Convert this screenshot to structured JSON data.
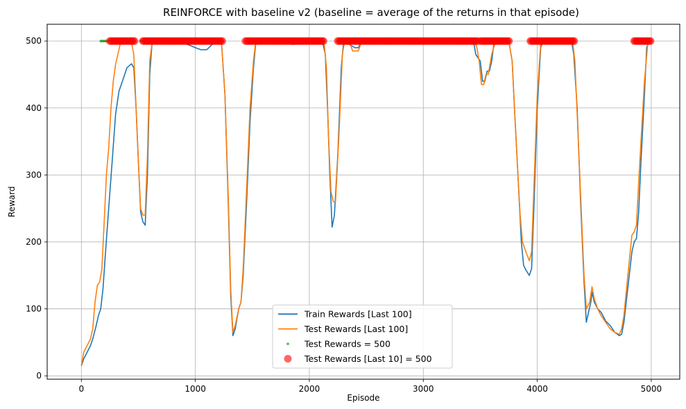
{
  "chart_data": {
    "type": "line",
    "title": "REINFORCE with baseline v2 (baseline = average of the returns in that episode)",
    "xlabel": "Episode",
    "ylabel": "Reward",
    "xlim": [
      -300,
      5250
    ],
    "ylim": [
      -5,
      525
    ],
    "xticks": [
      0,
      1000,
      2000,
      3000,
      4000,
      5000
    ],
    "yticks": [
      0,
      100,
      200,
      300,
      400,
      500
    ],
    "grid": true,
    "legend_position": "lower-center",
    "series": [
      {
        "name": "Train Rewards [Last 100]",
        "kind": "line",
        "color": "#1f77b4",
        "points": [
          [
            0,
            15
          ],
          [
            20,
            25
          ],
          [
            50,
            35
          ],
          [
            80,
            45
          ],
          [
            100,
            55
          ],
          [
            130,
            75
          ],
          [
            150,
            90
          ],
          [
            170,
            100
          ],
          [
            190,
            130
          ],
          [
            210,
            180
          ],
          [
            240,
            250
          ],
          [
            270,
            320
          ],
          [
            300,
            390
          ],
          [
            330,
            425
          ],
          [
            360,
            440
          ],
          [
            400,
            460
          ],
          [
            440,
            466
          ],
          [
            460,
            460
          ],
          [
            480,
            400
          ],
          [
            500,
            320
          ],
          [
            520,
            245
          ],
          [
            540,
            230
          ],
          [
            560,
            225
          ],
          [
            580,
            300
          ],
          [
            600,
            450
          ],
          [
            620,
            497
          ],
          [
            650,
            500
          ],
          [
            800,
            500
          ],
          [
            900,
            497
          ],
          [
            1000,
            490
          ],
          [
            1050,
            487
          ],
          [
            1100,
            487
          ],
          [
            1130,
            492
          ],
          [
            1160,
            497
          ],
          [
            1200,
            500
          ],
          [
            1230,
            497
          ],
          [
            1260,
            420
          ],
          [
            1290,
            250
          ],
          [
            1310,
            120
          ],
          [
            1330,
            60
          ],
          [
            1350,
            70
          ],
          [
            1380,
            100
          ],
          [
            1400,
            110
          ],
          [
            1420,
            150
          ],
          [
            1450,
            260
          ],
          [
            1480,
            380
          ],
          [
            1510,
            460
          ],
          [
            1530,
            497
          ],
          [
            1550,
            500
          ],
          [
            1800,
            500
          ],
          [
            1850,
            495
          ],
          [
            1950,
            496
          ],
          [
            2080,
            498
          ],
          [
            2120,
            495
          ],
          [
            2140,
            480
          ],
          [
            2160,
            400
          ],
          [
            2180,
            300
          ],
          [
            2200,
            222
          ],
          [
            2220,
            240
          ],
          [
            2250,
            330
          ],
          [
            2280,
            460
          ],
          [
            2300,
            497
          ],
          [
            2350,
            495
          ],
          [
            2400,
            490
          ],
          [
            2430,
            490
          ],
          [
            2450,
            497
          ],
          [
            2480,
            500
          ],
          [
            3440,
            500
          ],
          [
            3460,
            480
          ],
          [
            3500,
            470
          ],
          [
            3520,
            440
          ],
          [
            3540,
            440
          ],
          [
            3560,
            455
          ],
          [
            3580,
            455
          ],
          [
            3600,
            470
          ],
          [
            3620,
            497
          ],
          [
            3650,
            500
          ],
          [
            3750,
            500
          ],
          [
            3780,
            470
          ],
          [
            3800,
            400
          ],
          [
            3830,
            300
          ],
          [
            3860,
            200
          ],
          [
            3880,
            165
          ],
          [
            3900,
            158
          ],
          [
            3930,
            150
          ],
          [
            3950,
            160
          ],
          [
            3970,
            250
          ],
          [
            4000,
            400
          ],
          [
            4030,
            490
          ],
          [
            4050,
            500
          ],
          [
            4300,
            500
          ],
          [
            4320,
            480
          ],
          [
            4350,
            400
          ],
          [
            4380,
            260
          ],
          [
            4410,
            140
          ],
          [
            4430,
            80
          ],
          [
            4450,
            95
          ],
          [
            4470,
            110
          ],
          [
            4480,
            125
          ],
          [
            4500,
            110
          ],
          [
            4530,
            100
          ],
          [
            4560,
            95
          ],
          [
            4600,
            82
          ],
          [
            4640,
            75
          ],
          [
            4680,
            65
          ],
          [
            4720,
            60
          ],
          [
            4740,
            62
          ],
          [
            4760,
            80
          ],
          [
            4800,
            140
          ],
          [
            4830,
            185
          ],
          [
            4850,
            200
          ],
          [
            4870,
            205
          ],
          [
            4890,
            245
          ],
          [
            4910,
            320
          ],
          [
            4940,
            420
          ],
          [
            4960,
            490
          ],
          [
            4980,
            500
          ],
          [
            5000,
            500
          ]
        ]
      },
      {
        "name": "Test Rewards [Last 100]",
        "kind": "line",
        "color": "#ff7f0e",
        "points": [
          [
            0,
            15
          ],
          [
            20,
            35
          ],
          [
            50,
            45
          ],
          [
            80,
            55
          ],
          [
            100,
            70
          ],
          [
            120,
            110
          ],
          [
            140,
            135
          ],
          [
            160,
            140
          ],
          [
            180,
            160
          ],
          [
            200,
            230
          ],
          [
            220,
            300
          ],
          [
            240,
            340
          ],
          [
            260,
            400
          ],
          [
            280,
            440
          ],
          [
            300,
            465
          ],
          [
            320,
            480
          ],
          [
            340,
            495
          ],
          [
            360,
            500
          ],
          [
            400,
            497
          ],
          [
            440,
            497
          ],
          [
            460,
            480
          ],
          [
            480,
            400
          ],
          [
            500,
            320
          ],
          [
            520,
            250
          ],
          [
            540,
            240
          ],
          [
            560,
            240
          ],
          [
            580,
            330
          ],
          [
            600,
            470
          ],
          [
            620,
            497
          ],
          [
            650,
            500
          ],
          [
            1200,
            500
          ],
          [
            1230,
            497
          ],
          [
            1260,
            420
          ],
          [
            1290,
            260
          ],
          [
            1310,
            130
          ],
          [
            1330,
            65
          ],
          [
            1350,
            75
          ],
          [
            1380,
            100
          ],
          [
            1400,
            110
          ],
          [
            1420,
            160
          ],
          [
            1450,
            280
          ],
          [
            1480,
            400
          ],
          [
            1510,
            470
          ],
          [
            1530,
            500
          ],
          [
            2100,
            500
          ],
          [
            2130,
            497
          ],
          [
            2150,
            460
          ],
          [
            2170,
            350
          ],
          [
            2190,
            275
          ],
          [
            2210,
            260
          ],
          [
            2230,
            260
          ],
          [
            2260,
            360
          ],
          [
            2290,
            480
          ],
          [
            2310,
            500
          ],
          [
            2350,
            500
          ],
          [
            2380,
            485
          ],
          [
            2430,
            485
          ],
          [
            2460,
            500
          ],
          [
            3450,
            500
          ],
          [
            3470,
            490
          ],
          [
            3490,
            470
          ],
          [
            3510,
            435
          ],
          [
            3530,
            435
          ],
          [
            3550,
            450
          ],
          [
            3570,
            450
          ],
          [
            3600,
            480
          ],
          [
            3630,
            497
          ],
          [
            3650,
            500
          ],
          [
            3750,
            500
          ],
          [
            3780,
            470
          ],
          [
            3800,
            400
          ],
          [
            3830,
            300
          ],
          [
            3850,
            240
          ],
          [
            3870,
            200
          ],
          [
            3900,
            185
          ],
          [
            3930,
            172
          ],
          [
            3950,
            185
          ],
          [
            3970,
            280
          ],
          [
            4000,
            420
          ],
          [
            4030,
            495
          ],
          [
            4050,
            500
          ],
          [
            4310,
            500
          ],
          [
            4330,
            470
          ],
          [
            4360,
            350
          ],
          [
            4390,
            230
          ],
          [
            4410,
            150
          ],
          [
            4430,
            100
          ],
          [
            4460,
            110
          ],
          [
            4480,
            133
          ],
          [
            4500,
            115
          ],
          [
            4530,
            100
          ],
          [
            4560,
            90
          ],
          [
            4600,
            80
          ],
          [
            4640,
            70
          ],
          [
            4680,
            65
          ],
          [
            4720,
            62
          ],
          [
            4740,
            70
          ],
          [
            4760,
            90
          ],
          [
            4800,
            160
          ],
          [
            4830,
            210
          ],
          [
            4850,
            215
          ],
          [
            4870,
            225
          ],
          [
            4890,
            290
          ],
          [
            4910,
            350
          ],
          [
            4940,
            440
          ],
          [
            4970,
            498
          ],
          [
            5000,
            500
          ]
        ]
      },
      {
        "name": "Test Rewards = 500",
        "kind": "scatter",
        "color": "#2ca02c",
        "x_ranges": [
          [
            170,
            470
          ],
          [
            520,
            1240
          ],
          [
            1440,
            2130
          ],
          [
            2250,
            3480
          ],
          [
            3500,
            3760
          ],
          [
            3940,
            4330
          ],
          [
            4850,
            5000
          ]
        ],
        "y": 500
      },
      {
        "name": "Test Rewards [Last 10] = 500",
        "kind": "scatter",
        "color": "#ff0000",
        "x_ranges": [
          [
            250,
            470
          ],
          [
            540,
            1240
          ],
          [
            1440,
            2130
          ],
          [
            2250,
            3480
          ],
          [
            3500,
            3760
          ],
          [
            3940,
            4330
          ],
          [
            4850,
            5000
          ]
        ],
        "y": 500
      }
    ]
  }
}
